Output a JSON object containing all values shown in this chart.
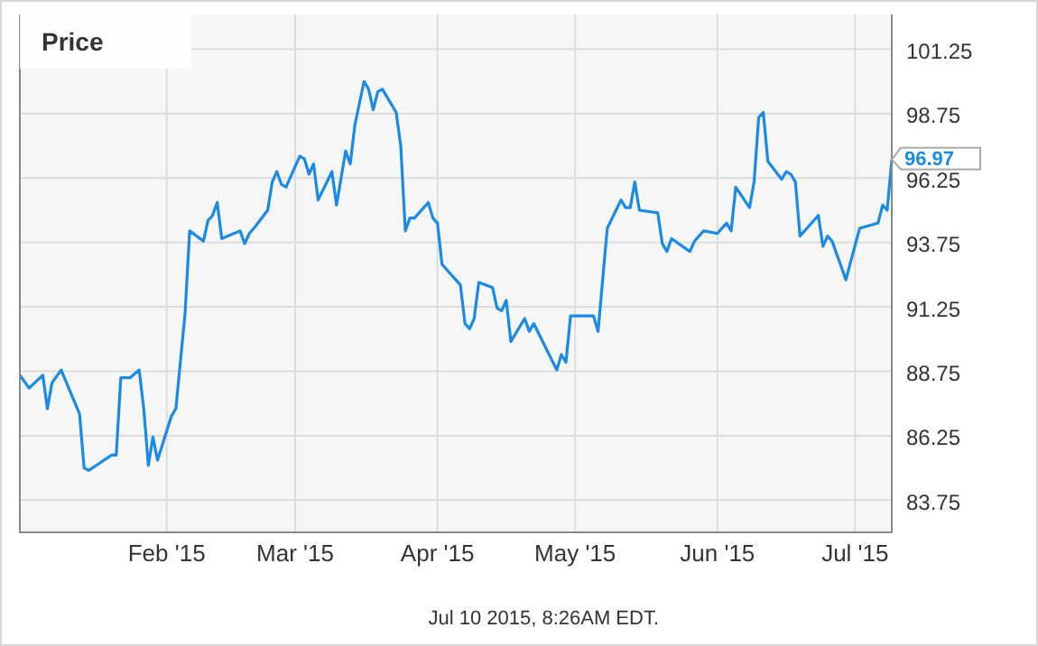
{
  "chart_data": {
    "type": "line",
    "title": "Price",
    "x": [
      "2014-12-31",
      "2015-01-02",
      "2015-01-05",
      "2015-01-06",
      "2015-01-07",
      "2015-01-09",
      "2015-01-13",
      "2015-01-14",
      "2015-01-15",
      "2015-01-20",
      "2015-01-21",
      "2015-01-22",
      "2015-01-24",
      "2015-01-26",
      "2015-01-27",
      "2015-01-28",
      "2015-01-29",
      "2015-01-30",
      "2015-02-02",
      "2015-02-03",
      "2015-02-05",
      "2015-02-06",
      "2015-02-09",
      "2015-02-10",
      "2015-02-11",
      "2015-02-12",
      "2015-02-13",
      "2015-02-17",
      "2015-02-18",
      "2015-02-19",
      "2015-02-20",
      "2015-02-23",
      "2015-02-24",
      "2015-02-25",
      "2015-02-26",
      "2015-02-27",
      "2015-03-02",
      "2015-03-03",
      "2015-03-04",
      "2015-03-05",
      "2015-03-06",
      "2015-03-09",
      "2015-03-10",
      "2015-03-12",
      "2015-03-13",
      "2015-03-14",
      "2015-03-16",
      "2015-03-17",
      "2015-03-18",
      "2015-03-19",
      "2015-03-20",
      "2015-03-23",
      "2015-03-24",
      "2015-03-25",
      "2015-03-26",
      "2015-03-27",
      "2015-03-30",
      "2015-03-31",
      "2015-04-01",
      "2015-04-02",
      "2015-04-06",
      "2015-04-07",
      "2015-04-08",
      "2015-04-09",
      "2015-04-10",
      "2015-04-13",
      "2015-04-14",
      "2015-04-15",
      "2015-04-16",
      "2015-04-17",
      "2015-04-20",
      "2015-04-21",
      "2015-04-22",
      "2015-04-27",
      "2015-04-28",
      "2015-04-29",
      "2015-04-30",
      "2015-05-05",
      "2015-05-06",
      "2015-05-08",
      "2015-05-11",
      "2015-05-12",
      "2015-05-13",
      "2015-05-14",
      "2015-05-15",
      "2015-05-19",
      "2015-05-20",
      "2015-05-21",
      "2015-05-22",
      "2015-05-26",
      "2015-05-27",
      "2015-05-29",
      "2015-06-01",
      "2015-06-03",
      "2015-06-04",
      "2015-06-05",
      "2015-06-08",
      "2015-06-09",
      "2015-06-10",
      "2015-06-11",
      "2015-06-12",
      "2015-06-15",
      "2015-06-16",
      "2015-06-17",
      "2015-06-18",
      "2015-06-19",
      "2015-06-23",
      "2015-06-24",
      "2015-06-25",
      "2015-06-26",
      "2015-06-29",
      "2015-07-02",
      "2015-07-06",
      "2015-07-07",
      "2015-07-08",
      "2015-07-09"
    ],
    "series": [
      {
        "color": "#1a8ae6",
        "values": [
          88.6,
          88.1,
          88.6,
          87.3,
          88.3,
          88.8,
          87.1,
          85.0,
          84.9,
          85.5,
          85.5,
          88.5,
          88.5,
          88.8,
          87.3,
          85.1,
          86.2,
          85.3,
          87.0,
          87.3,
          91.0,
          94.2,
          93.8,
          94.6,
          94.8,
          95.3,
          93.9,
          94.2,
          93.7,
          94.1,
          94.3,
          95.0,
          96.1,
          96.5,
          96.0,
          95.9,
          97.1,
          97.0,
          96.4,
          96.8,
          95.4,
          96.5,
          95.2,
          97.3,
          96.8,
          98.3,
          100.0,
          99.7,
          98.9,
          99.6,
          99.7,
          98.8,
          97.5,
          94.2,
          94.7,
          94.7,
          95.3,
          94.7,
          94.5,
          92.9,
          92.1,
          90.6,
          90.4,
          90.8,
          92.2,
          92.0,
          91.2,
          91.1,
          91.5,
          89.9,
          90.8,
          90.3,
          90.6,
          88.8,
          89.4,
          89.1,
          90.9,
          90.9,
          90.3,
          94.3,
          95.4,
          95.1,
          95.1,
          96.1,
          95.0,
          94.9,
          93.7,
          93.4,
          93.9,
          93.4,
          93.8,
          94.2,
          94.1,
          94.5,
          94.2,
          95.9,
          95.1,
          96.1,
          98.6,
          98.8,
          96.9,
          96.2,
          96.5,
          96.4,
          96.1,
          94.0,
          94.8,
          93.6,
          94.0,
          93.8,
          92.3,
          94.3,
          94.5,
          95.2,
          95.0,
          96.97
        ]
      }
    ],
    "xlim": [
      "2014-12-31",
      "2015-07-09"
    ],
    "xticks": [
      {
        "value": "2015-02-01",
        "label": "Feb '15"
      },
      {
        "value": "2015-03-01",
        "label": "Mar '15"
      },
      {
        "value": "2015-04-01",
        "label": "Apr '15"
      },
      {
        "value": "2015-05-01",
        "label": "May '15"
      },
      {
        "value": "2015-06-01",
        "label": "Jun '15"
      },
      {
        "value": "2015-07-01",
        "label": "Jul '15"
      }
    ],
    "ylim": [
      82.5,
      102.6
    ],
    "yticks": [
      83.75,
      86.25,
      88.75,
      91.25,
      93.75,
      96.25,
      98.75,
      101.25
    ],
    "grid": true,
    "annotations": [
      {
        "text": "96.97",
        "x": "2015-07-09",
        "y": 96.97
      },
      "Jul 10 2015, 8:26AM EDT."
    ]
  }
}
